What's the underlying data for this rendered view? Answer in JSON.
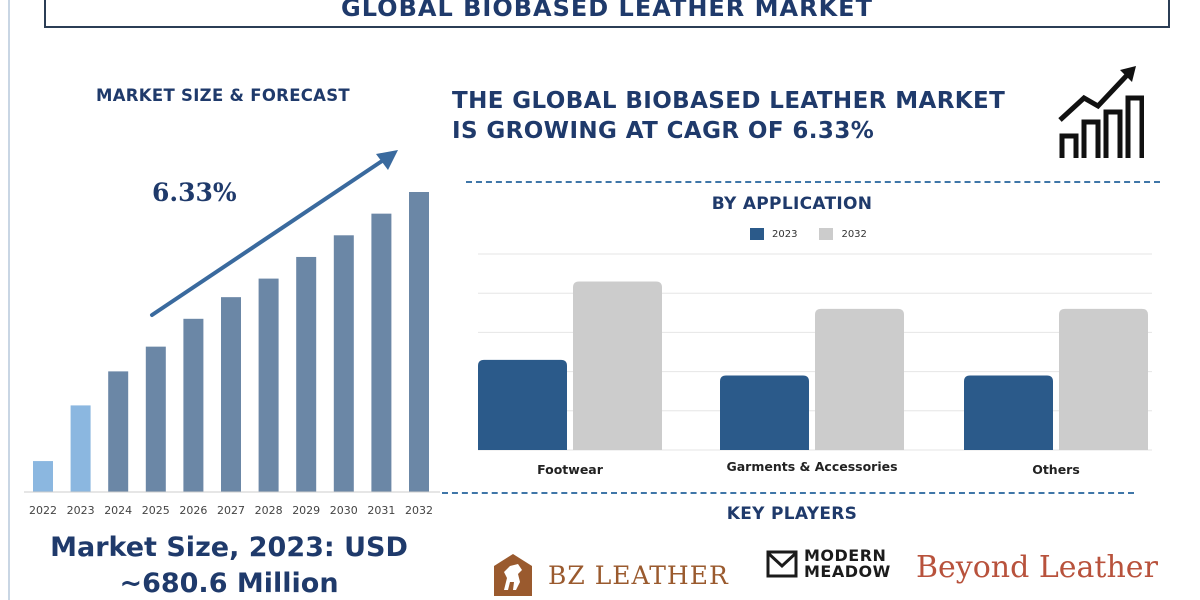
{
  "header": {
    "title": "GLOBAL BIOBASED LEATHER MARKET"
  },
  "left_panel": {
    "heading": "MARKET SIZE & FORECAST",
    "cagr_label": "6.33%",
    "market_size_text": "Market Size, 2023: USD ~680.6 Million",
    "market_size_line1": "Market Size, 2023: USD",
    "market_size_line2": "~680.6 Million"
  },
  "right_panel": {
    "headline_line1": "THE GLOBAL BIOBASED LEATHER MARKET",
    "headline_line2": "IS GROWING AT CAGR OF 6.33%",
    "growth_icon": "growth-chart-icon"
  },
  "key_players": {
    "heading": "KEY PLAYERS",
    "bz_leather": "BZ LEATHER",
    "modern_meadow_1": "MODERN",
    "modern_meadow_2": "MEADOW",
    "beyond_leather": "Beyond Leather"
  },
  "colors": {
    "navy": "#1f3a6b",
    "bar_dark": "#2b5a8a",
    "bar_grey": "#cccccc",
    "forecast_bar": "#6b87a6",
    "highlight_bar": "#8bb7e0"
  },
  "chart_data": [
    {
      "type": "bar",
      "title": "MARKET SIZE & FORECAST",
      "categories": [
        "2022",
        "2023",
        "2024",
        "2025",
        "2026",
        "2027",
        "2028",
        "2029",
        "2030",
        "2031",
        "2032"
      ],
      "values": [
        1.0,
        2.8,
        3.9,
        4.7,
        5.6,
        6.3,
        6.9,
        7.6,
        8.3,
        9.0,
        9.7
      ],
      "highlight": [
        "2022",
        "2023"
      ],
      "annotation": "6.33%",
      "grid": false
    },
    {
      "type": "bar",
      "title": "BY APPLICATION",
      "categories": [
        "Footwear",
        "Garments & Accessories",
        "Others"
      ],
      "series": [
        {
          "name": "2023",
          "values": [
            0.46,
            0.38,
            0.38
          ]
        },
        {
          "name": "2032",
          "values": [
            0.86,
            0.72,
            0.72
          ]
        }
      ],
      "legend": "top-center",
      "grid": true,
      "ylim": [
        0,
        1.0
      ]
    }
  ]
}
